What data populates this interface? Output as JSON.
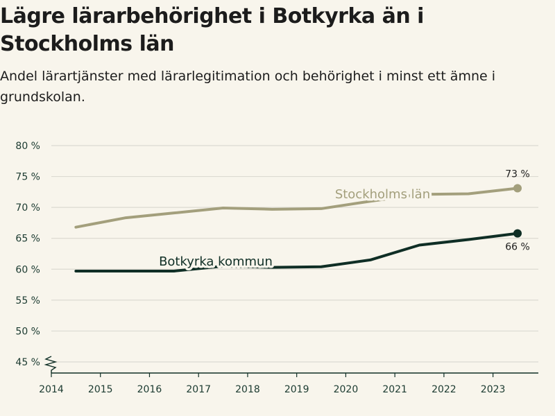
{
  "chart_data": {
    "type": "line",
    "title": "Lägre lärarbehörighet i Botkyrka än i Stockholms län",
    "subtitle": "Andel lärartjänster med lärarlegitimation och behörighet i minst ett ämne i grundskolan.",
    "xlabel": "",
    "ylabel": "",
    "x_ticks": [
      "2014",
      "2015",
      "2016",
      "2017",
      "2018",
      "2019",
      "2020",
      "2021",
      "2022",
      "2023"
    ],
    "y_ticks": [
      "45 %",
      "50 %",
      "55 %",
      "60 %",
      "65 %",
      "70 %",
      "75 %",
      "80 %"
    ],
    "ylim": [
      45,
      80
    ],
    "axis_break": true,
    "grid": true,
    "series": [
      {
        "name": "Stockholms län",
        "color": "#a39f7c",
        "x": [
          2014.5,
          2015.5,
          2016.5,
          2017.5,
          2018.5,
          2019.5,
          2020.5,
          2021.5,
          2022.5,
          2023.5
        ],
        "values": [
          66.8,
          68.3,
          69.1,
          69.9,
          69.7,
          69.8,
          71.0,
          72.1,
          72.2,
          73.1
        ],
        "end_label": "73 %"
      },
      {
        "name": "Botkyrka kommun",
        "color": "#0f2e25",
        "x": [
          2014.5,
          2015.5,
          2016.5,
          2017.5,
          2018.5,
          2019.5,
          2020.5,
          2021.5,
          2022.5,
          2023.5
        ],
        "values": [
          59.7,
          59.7,
          59.7,
          60.5,
          60.3,
          60.4,
          61.5,
          63.9,
          64.8,
          65.8
        ],
        "end_label": "66 %"
      }
    ]
  }
}
